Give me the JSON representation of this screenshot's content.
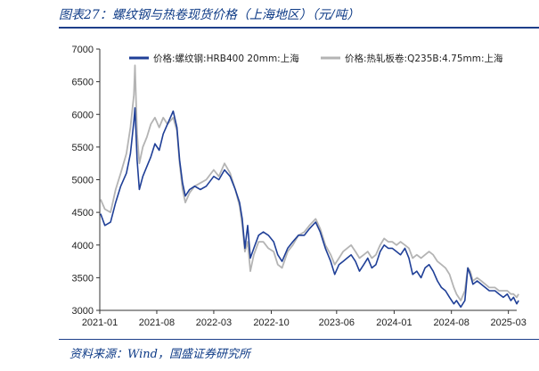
{
  "header": {
    "title": "图表27：螺纹钢与热卷现货价格（上海地区）（元/吨）"
  },
  "footer": {
    "source": "资料来源：Wind，国盛证券研究所"
  },
  "chart_data": {
    "type": "line",
    "title": "",
    "xlabel": "",
    "ylabel": "",
    "ylim": [
      3000,
      7000
    ],
    "xlim": [
      "2021-01",
      "2025-04"
    ],
    "yticks": [
      "3000",
      "3500",
      "4000",
      "4500",
      "5000",
      "5500",
      "6000",
      "6500",
      "7000"
    ],
    "xticks": [
      "2021-01",
      "2021-08",
      "2022-03",
      "2022-10",
      "2023-06",
      "2024-01",
      "2024-08",
      "2025-03"
    ],
    "grid": false,
    "legend_position": "top",
    "series": [
      {
        "name": "价格:螺纹钢:HRB400 20mm:上海",
        "color": "#1f3f97",
        "points": [
          [
            "2021-01-04",
            4480
          ],
          [
            "2021-01-20",
            4300
          ],
          [
            "2021-02-10",
            4350
          ],
          [
            "2021-03-01",
            4650
          ],
          [
            "2021-03-20",
            4900
          ],
          [
            "2021-04-10",
            5100
          ],
          [
            "2021-04-25",
            5400
          ],
          [
            "2021-05-08",
            5900
          ],
          [
            "2021-05-12",
            6100
          ],
          [
            "2021-05-20",
            5300
          ],
          [
            "2021-05-28",
            4850
          ],
          [
            "2021-06-10",
            5050
          ],
          [
            "2021-06-25",
            5200
          ],
          [
            "2021-07-10",
            5350
          ],
          [
            "2021-07-25",
            5550
          ],
          [
            "2021-08-10",
            5450
          ],
          [
            "2021-08-25",
            5700
          ],
          [
            "2021-09-10",
            5850
          ],
          [
            "2021-10-01",
            6050
          ],
          [
            "2021-10-15",
            5800
          ],
          [
            "2021-10-25",
            5300
          ],
          [
            "2021-11-05",
            4950
          ],
          [
            "2021-11-15",
            4750
          ],
          [
            "2021-12-01",
            4850
          ],
          [
            "2021-12-20",
            4900
          ],
          [
            "2022-01-10",
            4850
          ],
          [
            "2022-02-01",
            4900
          ],
          [
            "2022-03-01",
            5050
          ],
          [
            "2022-03-20",
            5000
          ],
          [
            "2022-04-10",
            5150
          ],
          [
            "2022-05-01",
            5050
          ],
          [
            "2022-05-20",
            4850
          ],
          [
            "2022-06-05",
            4650
          ],
          [
            "2022-06-15",
            4400
          ],
          [
            "2022-06-25",
            3950
          ],
          [
            "2022-07-05",
            4300
          ],
          [
            "2022-07-15",
            3800
          ],
          [
            "2022-07-28",
            3950
          ],
          [
            "2022-08-15",
            4150
          ],
          [
            "2022-09-01",
            4200
          ],
          [
            "2022-09-20",
            4150
          ],
          [
            "2022-10-10",
            4050
          ],
          [
            "2022-10-25",
            3850
          ],
          [
            "2022-11-10",
            3750
          ],
          [
            "2022-12-01",
            3950
          ],
          [
            "2022-12-20",
            4050
          ],
          [
            "2023-01-10",
            4150
          ],
          [
            "2023-02-01",
            4150
          ],
          [
            "2023-02-20",
            4250
          ],
          [
            "2023-03-15",
            4350
          ],
          [
            "2023-04-01",
            4200
          ],
          [
            "2023-04-20",
            3950
          ],
          [
            "2023-05-10",
            3750
          ],
          [
            "2023-05-25",
            3550
          ],
          [
            "2023-06-10",
            3700
          ],
          [
            "2023-06-25",
            3750
          ],
          [
            "2023-07-10",
            3800
          ],
          [
            "2023-07-25",
            3850
          ],
          [
            "2023-08-10",
            3750
          ],
          [
            "2023-08-25",
            3600
          ],
          [
            "2023-09-10",
            3700
          ],
          [
            "2023-09-25",
            3800
          ],
          [
            "2023-10-10",
            3650
          ],
          [
            "2023-10-25",
            3700
          ],
          [
            "2023-11-10",
            3900
          ],
          [
            "2023-11-25",
            4000
          ],
          [
            "2023-12-10",
            3950
          ],
          [
            "2023-12-25",
            3950
          ],
          [
            "2024-01-10",
            3900
          ],
          [
            "2024-01-25",
            3850
          ],
          [
            "2024-02-10",
            3950
          ],
          [
            "2024-02-25",
            3800
          ],
          [
            "2024-03-10",
            3550
          ],
          [
            "2024-03-25",
            3600
          ],
          [
            "2024-04-10",
            3500
          ],
          [
            "2024-04-25",
            3650
          ],
          [
            "2024-05-10",
            3700
          ],
          [
            "2024-05-25",
            3600
          ],
          [
            "2024-06-10",
            3450
          ],
          [
            "2024-06-25",
            3350
          ],
          [
            "2024-07-10",
            3300
          ],
          [
            "2024-07-25",
            3200
          ],
          [
            "2024-08-10",
            3100
          ],
          [
            "2024-08-20",
            3150
          ],
          [
            "2024-09-05",
            3050
          ],
          [
            "2024-09-20",
            3150
          ],
          [
            "2024-10-01",
            3650
          ],
          [
            "2024-10-10",
            3550
          ],
          [
            "2024-10-20",
            3400
          ],
          [
            "2024-11-05",
            3450
          ],
          [
            "2024-11-20",
            3400
          ],
          [
            "2024-12-05",
            3350
          ],
          [
            "2024-12-20",
            3300
          ],
          [
            "2025-01-10",
            3300
          ],
          [
            "2025-01-25",
            3250
          ],
          [
            "2025-02-10",
            3200
          ],
          [
            "2025-02-25",
            3250
          ],
          [
            "2025-03-10",
            3150
          ],
          [
            "2025-03-20",
            3200
          ],
          [
            "2025-04-01",
            3100
          ],
          [
            "2025-04-08",
            3150
          ]
        ]
      },
      {
        "name": "价格:热轧板卷:Q235B:4.75mm:上海",
        "color": "#b4b4b4",
        "points": [
          [
            "2021-01-04",
            4700
          ],
          [
            "2021-01-20",
            4550
          ],
          [
            "2021-02-10",
            4500
          ],
          [
            "2021-03-01",
            4850
          ],
          [
            "2021-03-20",
            5100
          ],
          [
            "2021-04-10",
            5400
          ],
          [
            "2021-04-25",
            5800
          ],
          [
            "2021-05-08",
            6300
          ],
          [
            "2021-05-12",
            6750
          ],
          [
            "2021-05-20",
            5700
          ],
          [
            "2021-05-28",
            5250
          ],
          [
            "2021-06-10",
            5500
          ],
          [
            "2021-06-25",
            5650
          ],
          [
            "2021-07-10",
            5850
          ],
          [
            "2021-07-25",
            5950
          ],
          [
            "2021-08-10",
            5800
          ],
          [
            "2021-08-25",
            5950
          ],
          [
            "2021-09-10",
            5850
          ],
          [
            "2021-10-01",
            5950
          ],
          [
            "2021-10-15",
            5750
          ],
          [
            "2021-10-25",
            5250
          ],
          [
            "2021-11-05",
            4850
          ],
          [
            "2021-11-15",
            4650
          ],
          [
            "2021-12-01",
            4800
          ],
          [
            "2021-12-20",
            4900
          ],
          [
            "2022-01-10",
            4950
          ],
          [
            "2022-02-01",
            5000
          ],
          [
            "2022-03-01",
            5150
          ],
          [
            "2022-03-20",
            5050
          ],
          [
            "2022-04-10",
            5250
          ],
          [
            "2022-05-01",
            5100
          ],
          [
            "2022-05-20",
            4850
          ],
          [
            "2022-06-05",
            4600
          ],
          [
            "2022-06-15",
            4300
          ],
          [
            "2022-06-25",
            3900
          ],
          [
            "2022-07-05",
            4050
          ],
          [
            "2022-07-15",
            3600
          ],
          [
            "2022-07-28",
            3850
          ],
          [
            "2022-08-15",
            4050
          ],
          [
            "2022-09-01",
            4050
          ],
          [
            "2022-09-20",
            3950
          ],
          [
            "2022-10-10",
            3900
          ],
          [
            "2022-10-25",
            3700
          ],
          [
            "2022-11-10",
            3650
          ],
          [
            "2022-12-01",
            3900
          ],
          [
            "2022-12-20",
            4000
          ],
          [
            "2023-01-10",
            4150
          ],
          [
            "2023-02-01",
            4200
          ],
          [
            "2023-02-20",
            4300
          ],
          [
            "2023-03-15",
            4400
          ],
          [
            "2023-04-01",
            4250
          ],
          [
            "2023-04-20",
            4000
          ],
          [
            "2023-05-10",
            3850
          ],
          [
            "2023-05-25",
            3700
          ],
          [
            "2023-06-10",
            3800
          ],
          [
            "2023-06-25",
            3900
          ],
          [
            "2023-07-10",
            3950
          ],
          [
            "2023-07-25",
            4000
          ],
          [
            "2023-08-10",
            3900
          ],
          [
            "2023-08-25",
            3800
          ],
          [
            "2023-09-10",
            3850
          ],
          [
            "2023-09-25",
            3900
          ],
          [
            "2023-10-10",
            3800
          ],
          [
            "2023-10-25",
            3850
          ],
          [
            "2023-11-10",
            4000
          ],
          [
            "2023-11-25",
            4100
          ],
          [
            "2023-12-10",
            4050
          ],
          [
            "2023-12-25",
            4050
          ],
          [
            "2024-01-10",
            4000
          ],
          [
            "2024-01-25",
            4050
          ],
          [
            "2024-02-10",
            4000
          ],
          [
            "2024-02-25",
            3950
          ],
          [
            "2024-03-10",
            3800
          ],
          [
            "2024-03-25",
            3850
          ],
          [
            "2024-04-10",
            3800
          ],
          [
            "2024-04-25",
            3850
          ],
          [
            "2024-05-10",
            3900
          ],
          [
            "2024-05-25",
            3850
          ],
          [
            "2024-06-10",
            3750
          ],
          [
            "2024-06-25",
            3700
          ],
          [
            "2024-07-10",
            3650
          ],
          [
            "2024-07-25",
            3550
          ],
          [
            "2024-08-10",
            3350
          ],
          [
            "2024-08-20",
            3250
          ],
          [
            "2024-09-05",
            3150
          ],
          [
            "2024-09-20",
            3300
          ],
          [
            "2024-10-01",
            3650
          ],
          [
            "2024-10-10",
            3600
          ],
          [
            "2024-10-20",
            3450
          ],
          [
            "2024-11-05",
            3500
          ],
          [
            "2024-11-20",
            3450
          ],
          [
            "2024-12-05",
            3400
          ],
          [
            "2024-12-20",
            3350
          ],
          [
            "2025-01-10",
            3350
          ],
          [
            "2025-01-25",
            3300
          ],
          [
            "2025-02-10",
            3300
          ],
          [
            "2025-02-25",
            3300
          ],
          [
            "2025-03-10",
            3250
          ],
          [
            "2025-03-20",
            3250
          ],
          [
            "2025-04-01",
            3200
          ],
          [
            "2025-04-08",
            3250
          ]
        ]
      }
    ]
  }
}
